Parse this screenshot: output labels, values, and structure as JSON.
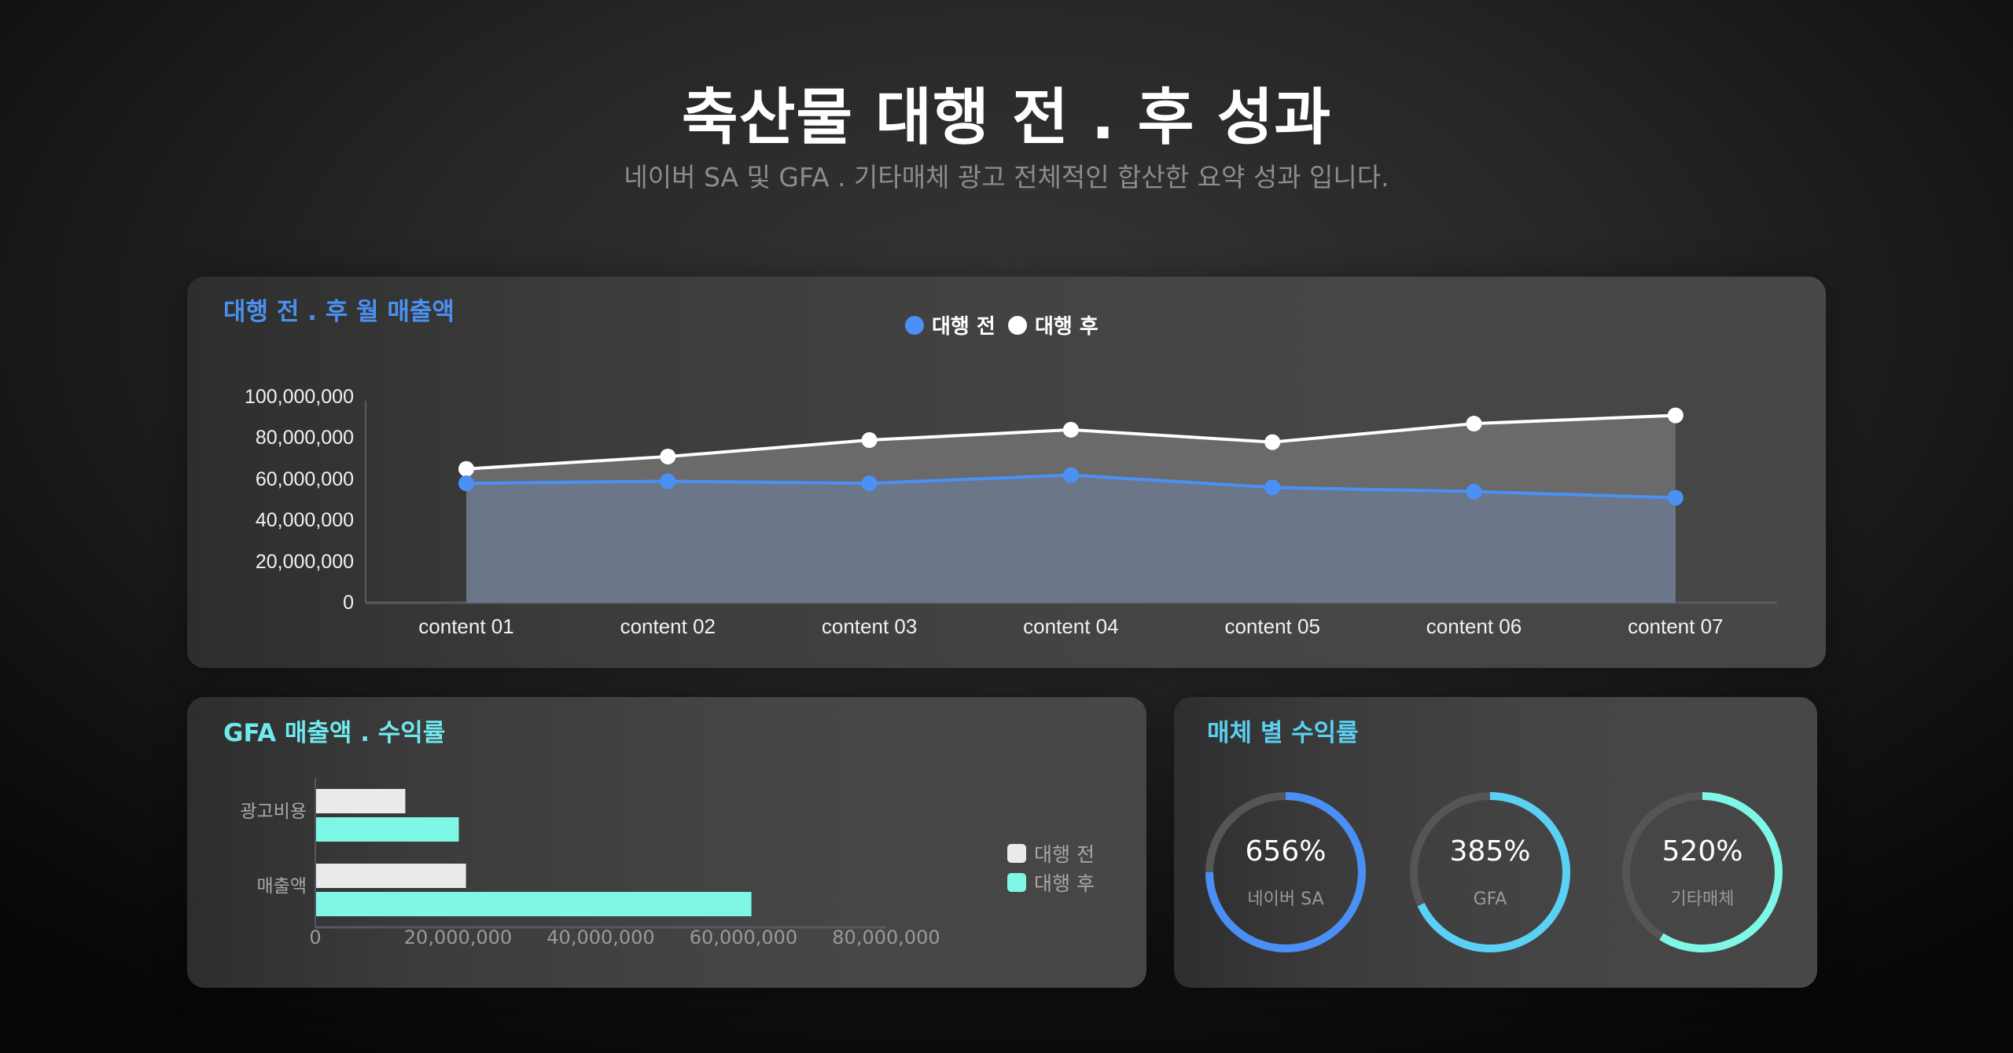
{
  "header": {
    "title": "축산물 대행 전 . 후 성과",
    "subtitle": "네이버 SA 및 GFA . 기타매체 광고 전체적인 합산한 요약 성과 입니다."
  },
  "colors": {
    "before_line": "#4a90f5",
    "after_line": "#ffffff",
    "before_area": "#6b7689",
    "after_area": "#6a6a6a",
    "bar_before": "#ebebeb",
    "bar_after": "#7ef7e6",
    "ring_track": "#555555",
    "ring_naver": "#4a8ff5",
    "ring_gfa": "#5bd0f5",
    "ring_etc": "#7ef7e6",
    "title_blue": "#4a90f0",
    "title_cyan": "#6fe9ee",
    "title_sky": "#5bcff0"
  },
  "line_card": {
    "title": "대행 전 . 후 월 매출액",
    "legend": [
      {
        "label": "대행 전",
        "icon": "blue-dot-icon"
      },
      {
        "label": "대행 후",
        "icon": "white-dot-icon"
      }
    ]
  },
  "bar_card": {
    "title": "GFA 매출액 . 수익률",
    "legend": [
      {
        "label": "대행 전",
        "icon": "light-gray-square-icon"
      },
      {
        "label": "대행 후",
        "icon": "mint-square-icon"
      }
    ]
  },
  "ring_card": {
    "title": "매체 별 수익률",
    "rings": [
      {
        "value": "656%",
        "label": "네이버 SA",
        "fill_ratio": 0.75
      },
      {
        "value": "385%",
        "label": "GFA",
        "fill_ratio": 0.68
      },
      {
        "value": "520%",
        "label": "기타매체",
        "fill_ratio": 0.59
      }
    ]
  },
  "chart_data": [
    {
      "type": "area",
      "title": "대행 전 . 후 월 매출액",
      "xlabel": "",
      "ylabel": "",
      "categories": [
        "content 01",
        "content 02",
        "content 03",
        "content 04",
        "content 05",
        "content 06",
        "content 07"
      ],
      "series": [
        {
          "name": "대행 전",
          "values": [
            58000000,
            59000000,
            58000000,
            62000000,
            56000000,
            54000000,
            51000000
          ]
        },
        {
          "name": "대행 후",
          "values": [
            65000000,
            71000000,
            79000000,
            84000000,
            78000000,
            87000000,
            91000000
          ]
        }
      ],
      "yticks": [
        "0",
        "20,000,000",
        "40,000,000",
        "60,000,000",
        "80,000,000",
        "100,000,000"
      ],
      "ylim": [
        0,
        100000000
      ],
      "grid": false,
      "legend_position": "top-center"
    },
    {
      "type": "bar",
      "orientation": "horizontal",
      "title": "GFA 매출액 . 수익률",
      "categories": [
        "광고비용",
        "매출액"
      ],
      "series": [
        {
          "name": "대행 전",
          "values": [
            12500000,
            21000000
          ]
        },
        {
          "name": "대행 후",
          "values": [
            20000000,
            61000000
          ]
        }
      ],
      "xticks": [
        "0",
        "20,000,000",
        "40,000,000",
        "60,000,000",
        "80,000,000"
      ],
      "xlim": [
        0,
        80000000
      ],
      "grid": false,
      "legend_position": "right"
    },
    {
      "type": "pie",
      "subtype": "donut-gauges",
      "title": "매체 별 수익률",
      "categories": [
        "네이버 SA",
        "GFA",
        "기타매체"
      ],
      "values": [
        656,
        385,
        520
      ],
      "unit": "%"
    }
  ]
}
